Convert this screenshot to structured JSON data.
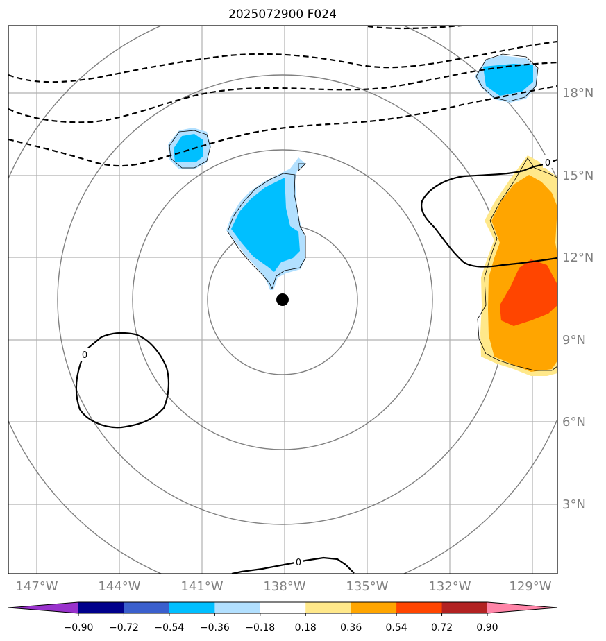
{
  "title": "2025072900 F024",
  "map": {
    "lon_labels": [
      "147°W",
      "144°W",
      "141°W",
      "138°W",
      "135°W",
      "132°W",
      "129°W"
    ],
    "lat_labels": [
      "18°N",
      "15°N",
      "12°N",
      "9°N",
      "6°N",
      "3°N"
    ],
    "center_marker": "storm-center",
    "contour_labels": [
      "0",
      "0",
      "0"
    ]
  },
  "colorbar": {
    "tick_labels": [
      "−0.90",
      "−0.72",
      "−0.54",
      "−0.36",
      "−0.18",
      "0.18",
      "0.36",
      "0.54",
      "0.72",
      "0.90"
    ],
    "colors": [
      "#9932cc",
      "#00008b",
      "#3a5fcd",
      "#00bfff",
      "#b2e0ff",
      "#ffffff",
      "#ffe88a",
      "#ffa500",
      "#ff4500",
      "#b22222",
      "#ff85a8"
    ]
  }
}
